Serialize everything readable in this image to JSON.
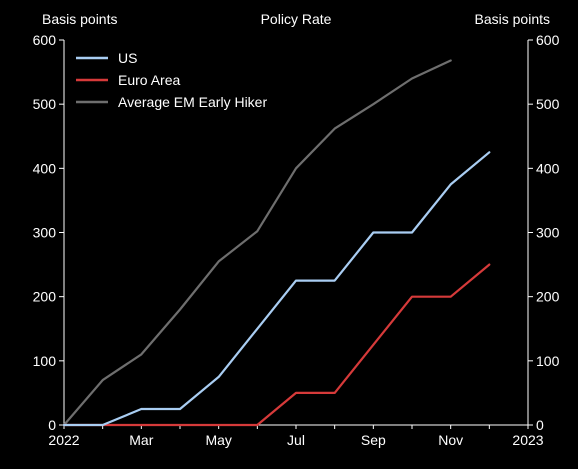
{
  "chart_data": {
    "type": "line",
    "title": "Policy Rate",
    "ylabel_left": "Basis points",
    "ylabel_right": "Basis points",
    "x_ticks": [
      "2022",
      "Mar",
      "May",
      "Jul",
      "Sep",
      "Nov",
      "2023"
    ],
    "x_tick_months": [
      0,
      2,
      4,
      6,
      8,
      10,
      12
    ],
    "ylim": [
      0,
      600
    ],
    "y_ticks": [
      0,
      100,
      200,
      300,
      400,
      500,
      600
    ],
    "grid": false,
    "legend_position": "top-left",
    "series": [
      {
        "name": "US",
        "color": "#a9cdf2",
        "x": [
          0,
          1,
          2,
          3,
          4,
          5,
          6,
          7,
          8,
          9,
          10,
          11
        ],
        "y": [
          0,
          0,
          25,
          25,
          75,
          150,
          225,
          225,
          300,
          300,
          375,
          425
        ]
      },
      {
        "name": "Euro Area",
        "color": "#d63a3a",
        "x": [
          0,
          1,
          2,
          3,
          4,
          5,
          6,
          7,
          8,
          9,
          10,
          11
        ],
        "y": [
          0,
          0,
          0,
          0,
          0,
          0,
          50,
          50,
          125,
          200,
          200,
          250
        ]
      },
      {
        "name": "Average EM Early Hiker",
        "color": "#6e6e6e",
        "x": [
          0,
          1,
          2,
          3,
          4,
          5,
          6,
          7,
          8,
          9,
          10
        ],
        "y": [
          0,
          70,
          110,
          180,
          255,
          302,
          400,
          462,
          500,
          540,
          568
        ]
      }
    ]
  }
}
